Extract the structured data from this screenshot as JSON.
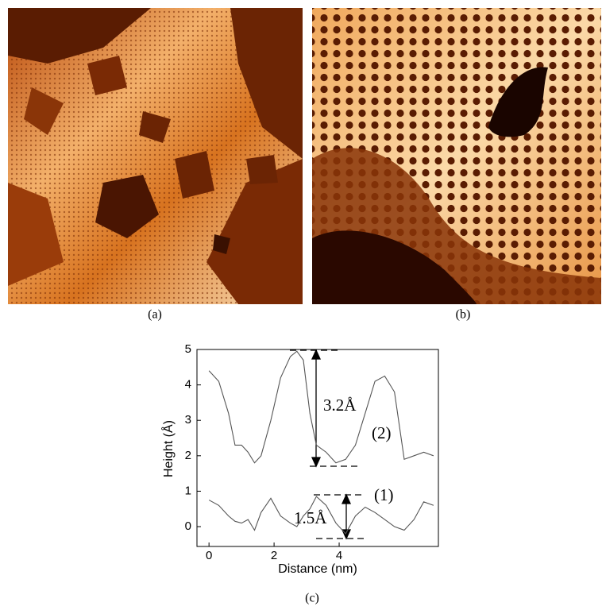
{
  "panels": {
    "a": {
      "label": "(a)"
    },
    "b": {
      "label": "(b)"
    },
    "c": {
      "label": "(c)"
    }
  },
  "chart_data": {
    "type": "line",
    "x_label": "Distance (nm)",
    "y_label": "Height (Å)",
    "x": [
      0,
      0.3,
      0.6,
      0.8,
      1.0,
      1.2,
      1.4,
      1.6,
      1.9,
      2.2,
      2.5,
      2.7,
      2.9,
      3.1,
      3.3,
      3.6,
      3.9,
      4.2,
      4.5,
      4.8,
      5.1,
      5.4,
      5.7,
      6.0,
      6.3,
      6.6,
      6.9
    ],
    "series": [
      {
        "name": "(2)",
        "color": "#555555",
        "values": [
          4.4,
          4.1,
          3.2,
          2.3,
          2.3,
          2.1,
          1.8,
          2.0,
          3.0,
          4.2,
          4.8,
          4.95,
          4.7,
          3.2,
          2.3,
          2.1,
          1.8,
          1.9,
          2.3,
          3.2,
          4.1,
          4.25,
          3.8,
          1.9,
          2.0,
          2.1,
          2.0
        ]
      },
      {
        "name": "(1)",
        "color": "#555555",
        "values": [
          0.75,
          0.6,
          0.3,
          0.15,
          0.1,
          0.2,
          -0.1,
          0.4,
          0.8,
          0.3,
          0.1,
          0.0,
          0.3,
          0.5,
          0.85,
          0.6,
          0.1,
          -0.2,
          0.3,
          0.55,
          0.4,
          0.2,
          0.0,
          -0.1,
          0.2,
          0.7,
          0.6
        ]
      }
    ],
    "xlim": [
      -0.37,
      7.05
    ],
    "ylim": [
      -0.56,
      5
    ],
    "xticks": [
      0,
      2,
      4
    ],
    "yticks": [
      0,
      1,
      2,
      3,
      4,
      5
    ],
    "annotations": [
      "3.2Å",
      "1.5Å"
    ]
  }
}
